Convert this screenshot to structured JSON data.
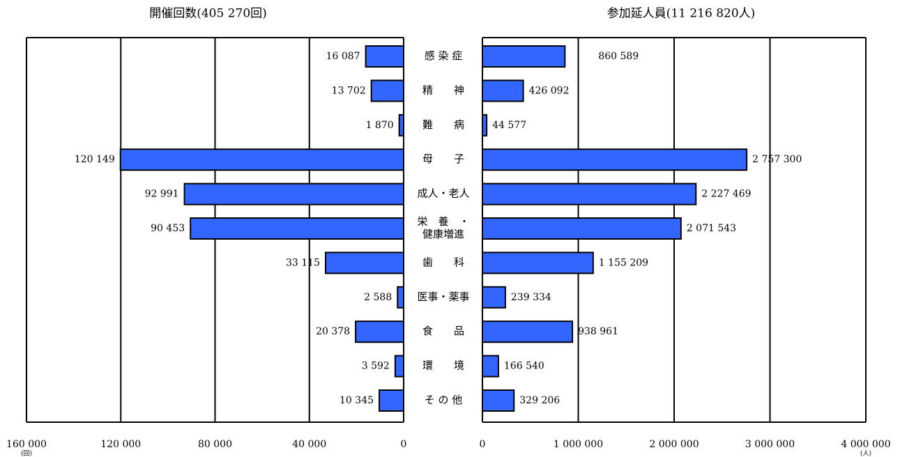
{
  "chart_data": {
    "type": "bar",
    "categories": [
      {
        "lines": [
          "感 染 症"
        ]
      },
      {
        "lines": [
          "精　　神"
        ]
      },
      {
        "lines": [
          "難　　病"
        ]
      },
      {
        "lines": [
          "母　　子"
        ]
      },
      {
        "lines": [
          "成人・老人"
        ]
      },
      {
        "lines": [
          "栄　養　・",
          "健康増進"
        ]
      },
      {
        "lines": [
          "歯　　科"
        ]
      },
      {
        "lines": [
          "医事・薬事"
        ]
      },
      {
        "lines": [
          "食　　品"
        ]
      },
      {
        "lines": [
          "環　　境"
        ]
      },
      {
        "lines": [
          "そ の 他"
        ]
      }
    ],
    "bar_color": "#3366ff",
    "panels": [
      {
        "title": "開催回数(405 270回)",
        "direction": "left",
        "unit": "(回)",
        "xlim": [
          0,
          160000
        ],
        "ticks": [
          0,
          40000,
          80000,
          120000,
          160000
        ],
        "tick_labels": [
          "0",
          "40 000",
          "80 000",
          "120 000",
          "160 000"
        ],
        "values": [
          16087,
          13702,
          1870,
          120149,
          92991,
          90453,
          33115,
          2588,
          20378,
          3592,
          10345
        ],
        "value_labels": [
          "16 087",
          "13 702",
          "1 870",
          "120 149",
          "92 991",
          "90 453",
          "33 115",
          "2 588",
          "20 378",
          "3 592",
          "10 345"
        ]
      },
      {
        "title": "参加延人員(11 216 820人)",
        "direction": "right",
        "unit": "(人)",
        "xlim": [
          0,
          4000000
        ],
        "ticks": [
          0,
          1000000,
          2000000,
          3000000,
          4000000
        ],
        "tick_labels": [
          "0",
          "1 000 000",
          "2 000 000",
          "3 000 000",
          "4 000 000"
        ],
        "values": [
          860589,
          426092,
          44577,
          2757300,
          2227469,
          2071543,
          1155209,
          239334,
          938961,
          166540,
          329206
        ],
        "value_labels": [
          "860 589",
          "426 092",
          "44 577",
          "2 757 300",
          "2 227 469",
          "2 071 543",
          "1 155 209",
          "239 334",
          "938 961",
          "166 540",
          "329 206"
        ]
      }
    ]
  }
}
